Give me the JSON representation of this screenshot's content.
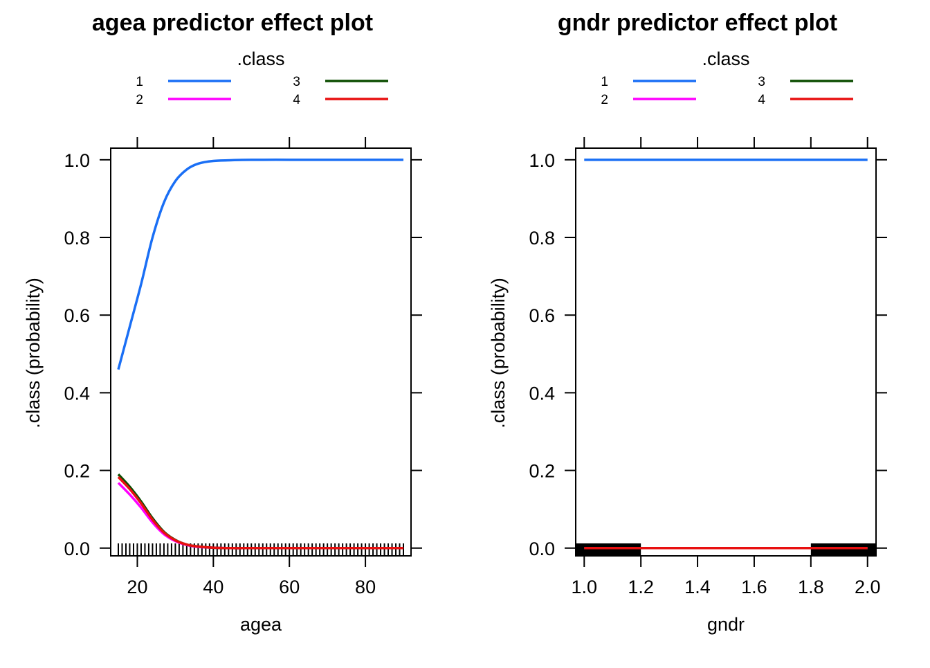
{
  "legend": {
    "title": ".class",
    "entries": [
      {
        "key": "1",
        "color": "#1a6ff5"
      },
      {
        "key": "2",
        "color": "#ff00ff"
      },
      {
        "key": "3",
        "color": "#0b4d00"
      },
      {
        "key": "4",
        "color": "#e81010"
      }
    ]
  },
  "chart_data": [
    {
      "type": "line",
      "title": "agea predictor effect plot",
      "xlabel": "agea",
      "ylabel": ".class (probability)",
      "xlim": [
        13,
        92
      ],
      "ylim": [
        -0.02,
        1.03
      ],
      "xticks": [
        20,
        40,
        60,
        80
      ],
      "yticks": [
        0.0,
        0.2,
        0.4,
        0.6,
        0.8,
        1.0
      ],
      "xtick_labels": [
        "20",
        "40",
        "60",
        "80"
      ],
      "ytick_labels": [
        "0.0",
        "0.2",
        "0.4",
        "0.6",
        "0.8",
        "1.0"
      ],
      "rug": {
        "type": "integers",
        "from": 15,
        "to": 90
      },
      "x": [
        15,
        18,
        21,
        24,
        27,
        30,
        33,
        36,
        40,
        45,
        50,
        60,
        70,
        80,
        90
      ],
      "series": [
        {
          "key": "1",
          "values": [
            0.46,
            0.57,
            0.68,
            0.8,
            0.89,
            0.945,
            0.975,
            0.99,
            0.997,
            0.999,
            1.0,
            1.0,
            1.0,
            1.0,
            1.0
          ]
        },
        {
          "key": "2",
          "values": [
            0.168,
            0.138,
            0.104,
            0.066,
            0.036,
            0.018,
            0.008,
            0.003,
            0.001,
            0.0,
            0.0,
            0.0,
            0.0,
            0.0,
            0.0
          ]
        },
        {
          "key": "3",
          "values": [
            0.19,
            0.158,
            0.12,
            0.077,
            0.042,
            0.021,
            0.009,
            0.004,
            0.001,
            0.0,
            0.0,
            0.0,
            0.0,
            0.0,
            0.0
          ]
        },
        {
          "key": "4",
          "values": [
            0.183,
            0.152,
            0.115,
            0.073,
            0.04,
            0.02,
            0.009,
            0.004,
            0.001,
            0.0,
            0.0,
            0.0,
            0.0,
            0.0,
            0.0
          ]
        }
      ]
    },
    {
      "type": "line",
      "title": "gndr predictor effect plot",
      "xlabel": "gndr",
      "ylabel": ".class (probability)",
      "xlim": [
        0.97,
        2.03
      ],
      "ylim": [
        -0.02,
        1.03
      ],
      "xticks": [
        1.0,
        1.2,
        1.4,
        1.6,
        1.8,
        2.0
      ],
      "yticks": [
        0.0,
        0.2,
        0.4,
        0.6,
        0.8,
        1.0
      ],
      "xtick_labels": [
        "1.0",
        "1.2",
        "1.4",
        "1.6",
        "1.8",
        "2.0"
      ],
      "ytick_labels": [
        "0.0",
        "0.2",
        "0.4",
        "0.6",
        "0.8",
        "1.0"
      ],
      "rug": {
        "type": "bands",
        "ranges": [
          [
            0.97,
            1.2
          ],
          [
            1.8,
            2.03
          ]
        ]
      },
      "x": [
        1.0,
        2.0
      ],
      "series": [
        {
          "key": "1",
          "values": [
            1.0,
            1.0
          ]
        },
        {
          "key": "2",
          "values": [
            0.0,
            0.0
          ]
        },
        {
          "key": "3",
          "values": [
            0.0,
            0.0
          ]
        },
        {
          "key": "4",
          "values": [
            0.0,
            0.0
          ]
        }
      ]
    }
  ]
}
